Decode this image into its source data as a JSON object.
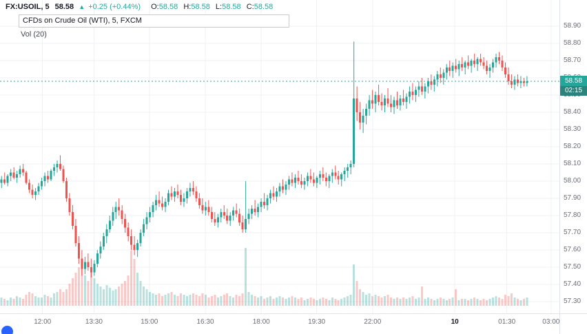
{
  "colors": {
    "up": "#26a69a",
    "down": "#ef5350",
    "vol_up": "rgba(38,166,154,0.32)",
    "vol_down": "rgba(239,83,80,0.32)",
    "grid": "#eef1f6",
    "price_line": "#26a69a",
    "axis_text": "#6a6d78",
    "text_dark": "#131722"
  },
  "header": {
    "symbol_interval": "FX:USOIL, 5",
    "last_price": "58.58",
    "up_triangle": "▲",
    "change": "+0.25 (+0.44%)",
    "ohlc": [
      {
        "label": "O:",
        "value": "58.58"
      },
      {
        "label": "H:",
        "value": "58.58"
      },
      {
        "label": "L:",
        "value": "58.58"
      },
      {
        "label": "C:",
        "value": "58.58"
      }
    ],
    "description": "CFDs on Crude Oil (WTI), 5, FXCM",
    "indicator": "Vol (20)"
  },
  "price_marker": {
    "price": "58.58",
    "countdown": "02:15"
  },
  "price_axis": {
    "labels": [
      "58.90",
      "58.80",
      "58.70",
      "58.60",
      "58.50",
      "58.40",
      "58.30",
      "58.20",
      "58.10",
      "58.00",
      "57.90",
      "57.80",
      "57.70",
      "57.60",
      "57.50",
      "57.40",
      "57.30"
    ]
  },
  "time_axis": {
    "labels": [
      {
        "text": "12:00",
        "pos": 0.076,
        "bold": false
      },
      {
        "text": "13:30",
        "pos": 0.168,
        "bold": false
      },
      {
        "text": "15:00",
        "pos": 0.267,
        "bold": false
      },
      {
        "text": "16:30",
        "pos": 0.367,
        "bold": false
      },
      {
        "text": "18:00",
        "pos": 0.467,
        "bold": false
      },
      {
        "text": "19:30",
        "pos": 0.566,
        "bold": false
      },
      {
        "text": "22:00",
        "pos": 0.666,
        "bold": false
      },
      {
        "text": "10",
        "pos": 0.813,
        "bold": true
      },
      {
        "text": "01:30",
        "pos": 0.906,
        "bold": false
      },
      {
        "text": "03:00",
        "pos": 0.985,
        "bold": false
      }
    ]
  },
  "chart_data": {
    "type": "candlestick",
    "title": "CFDs on Crude Oil (WTI), 5, FXCM",
    "symbol": "FX:USOIL",
    "interval": "5 minutes",
    "exchange": "FXCM",
    "last_price": 58.58,
    "change": 0.25,
    "change_pct": 0.44,
    "ylim": [
      57.25,
      58.95
    ],
    "y_tick_labels": [
      "58.90",
      "58.80",
      "58.70",
      "58.60",
      "58.50",
      "58.40",
      "58.30",
      "58.20",
      "58.10",
      "58.00",
      "57.90",
      "57.80",
      "57.70",
      "57.60",
      "57.50",
      "57.40",
      "57.30"
    ],
    "x_tick_labels": [
      "12:00",
      "13:30",
      "15:00",
      "16:30",
      "18:00",
      "19:30",
      "22:00",
      "10",
      "01:30",
      "03:00"
    ],
    "indicator": "Vol (20)",
    "candles_format": [
      "open",
      "high",
      "low",
      "close",
      "volume_est"
    ],
    "candles": [
      [
        57.99,
        58.03,
        57.96,
        58.01,
        6
      ],
      [
        58.01,
        58.05,
        57.98,
        57.99,
        5
      ],
      [
        57.99,
        58.04,
        57.97,
        58.03,
        4
      ],
      [
        58.03,
        58.07,
        58.0,
        58.05,
        6
      ],
      [
        58.05,
        58.08,
        58.01,
        58.02,
        5
      ],
      [
        58.02,
        58.06,
        57.99,
        58.04,
        7
      ],
      [
        58.04,
        58.09,
        58.02,
        58.07,
        6
      ],
      [
        58.07,
        58.1,
        58.03,
        58.05,
        5
      ],
      [
        58.05,
        58.06,
        57.98,
        57.99,
        8
      ],
      [
        57.99,
        58.01,
        57.93,
        57.95,
        10
      ],
      [
        57.95,
        57.98,
        57.9,
        57.92,
        9
      ],
      [
        57.92,
        57.96,
        57.89,
        57.94,
        7
      ],
      [
        57.94,
        57.99,
        57.92,
        57.97,
        6
      ],
      [
        57.97,
        58.02,
        57.95,
        58.0,
        6
      ],
      [
        58.0,
        58.05,
        57.97,
        58.03,
        8
      ],
      [
        58.03,
        58.06,
        57.99,
        58.01,
        7
      ],
      [
        58.01,
        58.07,
        58.0,
        58.06,
        6
      ],
      [
        58.06,
        58.1,
        58.03,
        58.08,
        9
      ],
      [
        58.08,
        58.12,
        58.05,
        58.1,
        10
      ],
      [
        58.1,
        58.15,
        58.06,
        58.07,
        12
      ],
      [
        58.07,
        58.09,
        57.99,
        58.0,
        10
      ],
      [
        58.0,
        58.02,
        57.88,
        57.9,
        12
      ],
      [
        57.9,
        57.93,
        57.8,
        57.82,
        16
      ],
      [
        57.82,
        57.86,
        57.72,
        57.74,
        20
      ],
      [
        57.74,
        57.78,
        57.62,
        57.64,
        24
      ],
      [
        57.64,
        57.68,
        57.52,
        57.55,
        28
      ],
      [
        57.55,
        57.6,
        57.45,
        57.49,
        30
      ],
      [
        57.49,
        57.56,
        57.46,
        57.53,
        22
      ],
      [
        57.53,
        57.58,
        57.48,
        57.5,
        18
      ],
      [
        57.5,
        57.55,
        57.44,
        57.47,
        26
      ],
      [
        57.47,
        57.54,
        57.45,
        57.52,
        20
      ],
      [
        57.52,
        57.6,
        57.5,
        57.58,
        16
      ],
      [
        57.58,
        57.65,
        57.55,
        57.62,
        14
      ],
      [
        57.62,
        57.7,
        57.6,
        57.68,
        12
      ],
      [
        57.68,
        57.75,
        57.64,
        57.72,
        15
      ],
      [
        57.72,
        57.8,
        57.7,
        57.77,
        13
      ],
      [
        57.77,
        57.85,
        57.74,
        57.82,
        11
      ],
      [
        57.82,
        57.88,
        57.78,
        57.85,
        12
      ],
      [
        57.85,
        57.9,
        57.8,
        57.83,
        14
      ],
      [
        57.83,
        57.86,
        57.75,
        57.78,
        16
      ],
      [
        57.78,
        57.81,
        57.7,
        57.73,
        18
      ],
      [
        57.73,
        57.76,
        57.65,
        57.68,
        22
      ],
      [
        57.68,
        57.72,
        57.6,
        57.63,
        40
      ],
      [
        57.63,
        57.68,
        57.57,
        57.6,
        34
      ],
      [
        57.6,
        57.66,
        57.56,
        57.64,
        24
      ],
      [
        57.64,
        57.72,
        57.62,
        57.7,
        18
      ],
      [
        57.7,
        57.78,
        57.68,
        57.75,
        14
      ],
      [
        57.75,
        57.82,
        57.72,
        57.79,
        12
      ],
      [
        57.79,
        57.85,
        57.76,
        57.82,
        10
      ],
      [
        57.82,
        57.88,
        57.79,
        57.86,
        9
      ],
      [
        57.86,
        57.92,
        57.83,
        57.89,
        8
      ],
      [
        57.89,
        57.94,
        57.85,
        57.87,
        9
      ],
      [
        57.87,
        57.91,
        57.83,
        57.85,
        7
      ],
      [
        57.85,
        57.9,
        57.82,
        57.88,
        8
      ],
      [
        57.88,
        57.95,
        57.86,
        57.93,
        9
      ],
      [
        57.93,
        57.97,
        57.89,
        57.91,
        10
      ],
      [
        57.91,
        57.96,
        57.88,
        57.94,
        8
      ],
      [
        57.94,
        57.98,
        57.9,
        57.92,
        7
      ],
      [
        57.92,
        57.95,
        57.86,
        57.88,
        9
      ],
      [
        57.88,
        57.93,
        57.85,
        57.9,
        8
      ],
      [
        57.9,
        57.96,
        57.87,
        57.94,
        7
      ],
      [
        57.94,
        57.99,
        57.91,
        57.96,
        8
      ],
      [
        57.96,
        58.0,
        57.92,
        57.94,
        9
      ],
      [
        57.94,
        57.97,
        57.88,
        57.9,
        8
      ],
      [
        57.9,
        57.93,
        57.84,
        57.86,
        7
      ],
      [
        57.86,
        57.9,
        57.81,
        57.83,
        9
      ],
      [
        57.83,
        57.88,
        57.8,
        57.85,
        8
      ],
      [
        57.85,
        57.89,
        57.8,
        57.82,
        6
      ],
      [
        57.82,
        57.85,
        57.76,
        57.78,
        7
      ],
      [
        57.78,
        57.82,
        57.74,
        57.76,
        8
      ],
      [
        57.76,
        57.81,
        57.73,
        57.79,
        6
      ],
      [
        57.79,
        57.84,
        57.76,
        57.82,
        7
      ],
      [
        57.82,
        57.86,
        57.78,
        57.8,
        8
      ],
      [
        57.8,
        57.84,
        57.75,
        57.77,
        9
      ],
      [
        57.77,
        57.82,
        57.74,
        57.8,
        7
      ],
      [
        57.8,
        57.85,
        57.77,
        57.83,
        6
      ],
      [
        57.83,
        57.87,
        57.79,
        57.81,
        8
      ],
      [
        57.81,
        57.84,
        57.74,
        57.76,
        7
      ],
      [
        57.76,
        57.8,
        57.7,
        57.72,
        9
      ],
      [
        57.72,
        58.0,
        57.7,
        57.78,
        42
      ],
      [
        57.78,
        57.84,
        57.75,
        57.81,
        10
      ],
      [
        57.81,
        57.86,
        57.78,
        57.84,
        8
      ],
      [
        57.84,
        57.89,
        57.8,
        57.82,
        7
      ],
      [
        57.82,
        57.87,
        57.79,
        57.85,
        6
      ],
      [
        57.85,
        57.9,
        57.82,
        57.88,
        7
      ],
      [
        57.88,
        57.93,
        57.84,
        57.86,
        5
      ],
      [
        57.86,
        57.92,
        57.83,
        57.9,
        6
      ],
      [
        57.9,
        57.95,
        57.87,
        57.93,
        7
      ],
      [
        57.93,
        57.97,
        57.89,
        57.91,
        5
      ],
      [
        57.91,
        57.96,
        57.88,
        57.94,
        6
      ],
      [
        57.94,
        57.99,
        57.91,
        57.97,
        7
      ],
      [
        57.97,
        58.01,
        57.93,
        57.95,
        6
      ],
      [
        57.95,
        58.0,
        57.92,
        57.98,
        5
      ],
      [
        57.98,
        58.03,
        57.95,
        58.01,
        6
      ],
      [
        58.01,
        58.05,
        57.97,
        57.99,
        7
      ],
      [
        57.99,
        58.04,
        57.96,
        58.02,
        6
      ],
      [
        58.02,
        58.06,
        57.98,
        58.0,
        5
      ],
      [
        58.0,
        58.04,
        57.96,
        57.98,
        6
      ],
      [
        57.98,
        58.02,
        57.95,
        58.0,
        4
      ],
      [
        58.0,
        58.05,
        57.97,
        58.03,
        5
      ],
      [
        58.03,
        58.07,
        57.99,
        58.01,
        6
      ],
      [
        58.01,
        58.05,
        57.97,
        57.99,
        5
      ],
      [
        57.99,
        58.03,
        57.96,
        58.02,
        4
      ],
      [
        58.02,
        58.06,
        57.98,
        58.04,
        5
      ],
      [
        58.04,
        58.08,
        58.0,
        58.02,
        6
      ],
      [
        58.02,
        58.05,
        57.97,
        58.0,
        5
      ],
      [
        58.0,
        58.04,
        57.96,
        58.03,
        4
      ],
      [
        58.03,
        58.07,
        57.99,
        58.05,
        6
      ],
      [
        58.05,
        58.09,
        58.01,
        58.03,
        5
      ],
      [
        58.03,
        58.06,
        57.98,
        58.01,
        4
      ],
      [
        58.01,
        58.05,
        57.97,
        58.04,
        5
      ],
      [
        58.04,
        58.08,
        58.0,
        58.06,
        6
      ],
      [
        58.06,
        58.1,
        58.02,
        58.08,
        7
      ],
      [
        58.08,
        58.12,
        58.04,
        58.1,
        8
      ],
      [
        58.1,
        58.81,
        58.08,
        58.48,
        30
      ],
      [
        58.48,
        58.55,
        58.35,
        58.4,
        18
      ],
      [
        58.4,
        58.46,
        58.3,
        58.34,
        12
      ],
      [
        58.34,
        58.42,
        58.28,
        58.38,
        10
      ],
      [
        58.38,
        58.45,
        58.33,
        58.42,
        8
      ],
      [
        58.42,
        58.5,
        58.38,
        58.47,
        9
      ],
      [
        58.47,
        58.53,
        58.42,
        58.45,
        7
      ],
      [
        58.45,
        58.52,
        58.4,
        58.5,
        8
      ],
      [
        58.5,
        58.56,
        58.44,
        58.46,
        7
      ],
      [
        58.46,
        58.51,
        58.41,
        58.44,
        6
      ],
      [
        58.44,
        58.5,
        58.4,
        58.48,
        7
      ],
      [
        58.48,
        58.54,
        58.43,
        58.45,
        8
      ],
      [
        58.45,
        58.5,
        58.4,
        58.43,
        6
      ],
      [
        58.43,
        58.49,
        58.39,
        58.47,
        5
      ],
      [
        58.47,
        58.52,
        58.42,
        58.44,
        6
      ],
      [
        58.44,
        58.5,
        58.41,
        58.48,
        5
      ],
      [
        58.48,
        58.53,
        58.44,
        58.46,
        6
      ],
      [
        58.46,
        58.51,
        58.42,
        58.49,
        5
      ],
      [
        58.49,
        58.55,
        58.45,
        58.52,
        6
      ],
      [
        58.52,
        58.57,
        58.47,
        58.5,
        7
      ],
      [
        58.5,
        58.55,
        58.46,
        58.53,
        5
      ],
      [
        58.53,
        58.58,
        58.49,
        58.55,
        6
      ],
      [
        58.55,
        58.6,
        58.5,
        58.52,
        14
      ],
      [
        58.52,
        58.57,
        58.48,
        58.55,
        5
      ],
      [
        58.55,
        58.6,
        58.51,
        58.58,
        6
      ],
      [
        58.58,
        58.62,
        58.53,
        58.56,
        5
      ],
      [
        58.56,
        58.61,
        58.52,
        58.59,
        4
      ],
      [
        58.59,
        58.64,
        58.55,
        58.62,
        5
      ],
      [
        58.62,
        58.66,
        58.57,
        58.6,
        6
      ],
      [
        58.6,
        58.65,
        58.56,
        58.63,
        5
      ],
      [
        58.63,
        58.68,
        58.59,
        58.66,
        4
      ],
      [
        58.66,
        58.7,
        58.61,
        58.64,
        5
      ],
      [
        58.64,
        58.69,
        58.6,
        58.67,
        6
      ],
      [
        58.67,
        58.71,
        58.63,
        58.65,
        12
      ],
      [
        58.65,
        58.7,
        58.61,
        58.68,
        4
      ],
      [
        58.68,
        58.72,
        58.64,
        58.66,
        5
      ],
      [
        58.66,
        58.7,
        58.62,
        58.69,
        5
      ],
      [
        58.69,
        58.73,
        58.65,
        58.67,
        4
      ],
      [
        58.67,
        58.71,
        58.63,
        58.7,
        5
      ],
      [
        58.7,
        58.74,
        58.66,
        58.68,
        6
      ],
      [
        58.68,
        58.72,
        58.64,
        58.71,
        5
      ],
      [
        58.71,
        58.74,
        58.67,
        58.69,
        4
      ],
      [
        58.69,
        58.72,
        58.65,
        58.67,
        5
      ],
      [
        58.67,
        58.7,
        58.62,
        58.64,
        4
      ],
      [
        58.64,
        58.68,
        58.6,
        58.66,
        5
      ],
      [
        58.66,
        58.71,
        58.63,
        58.69,
        6
      ],
      [
        58.69,
        58.74,
        58.66,
        58.72,
        7
      ],
      [
        58.72,
        58.75,
        58.68,
        58.7,
        6
      ],
      [
        58.7,
        58.73,
        58.64,
        58.66,
        5
      ],
      [
        58.66,
        58.69,
        58.6,
        58.62,
        8
      ],
      [
        58.62,
        58.66,
        58.56,
        58.58,
        7
      ],
      [
        58.58,
        58.62,
        58.54,
        58.56,
        9
      ],
      [
        58.56,
        58.61,
        58.53,
        58.59,
        6
      ],
      [
        58.59,
        58.62,
        58.55,
        58.57,
        5
      ],
      [
        58.57,
        58.61,
        58.54,
        58.58,
        4
      ],
      [
        58.58,
        58.6,
        58.55,
        58.57,
        5
      ],
      [
        58.57,
        58.61,
        58.55,
        58.58,
        6
      ]
    ]
  }
}
